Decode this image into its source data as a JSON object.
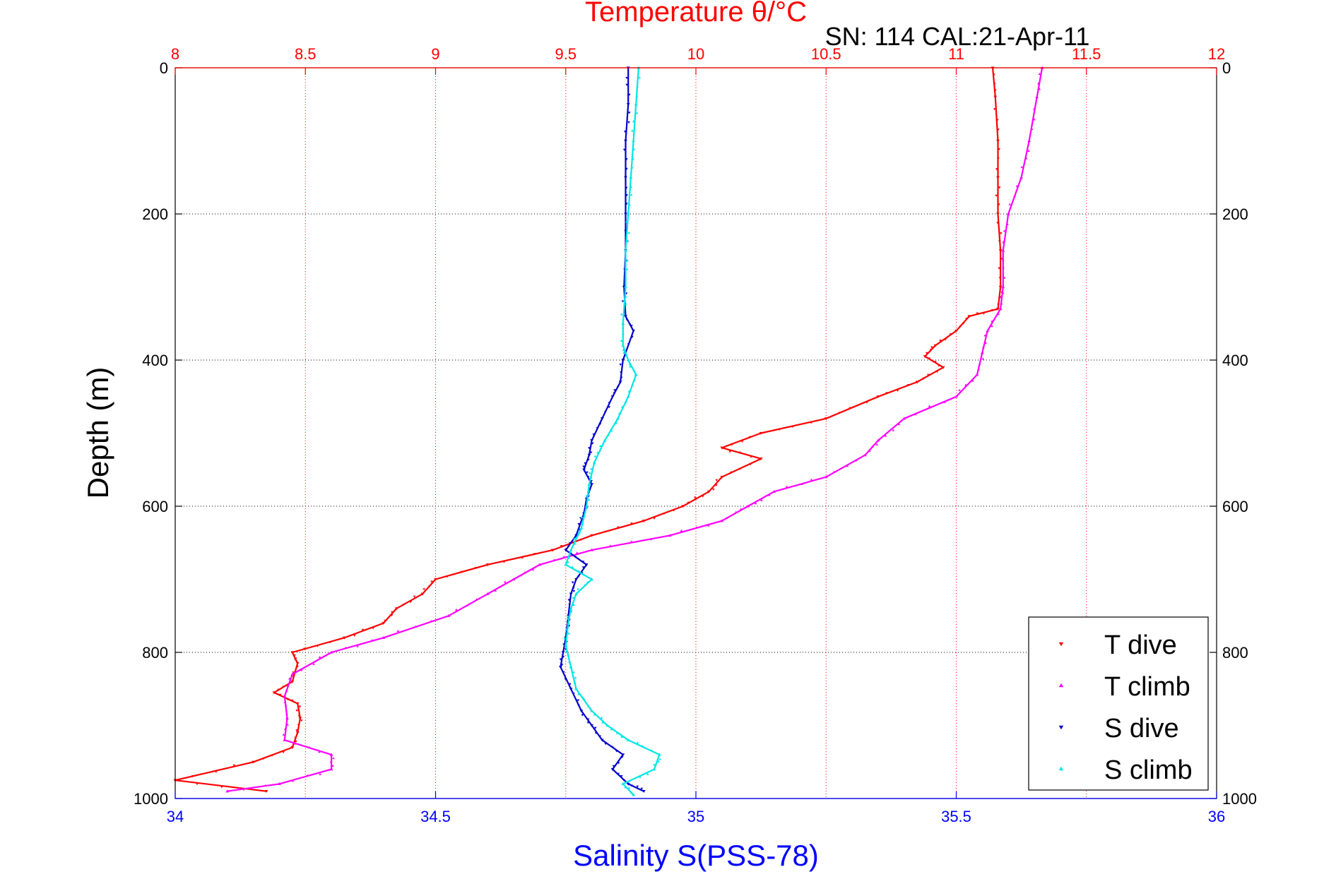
{
  "chart_data": {
    "type": "scatter",
    "title": "Temperature θ/°C",
    "subtitle": "SN: 114  CAL:21-Apr-11",
    "ylabel": "Depth (m)",
    "xlabel_bottom": "Salinity S(PSS-78)",
    "xlabel_top": "Temperature θ/°C",
    "ylim": [
      0,
      1000
    ],
    "y_reversed": true,
    "y_ticks": [
      0,
      200,
      400,
      600,
      800,
      1000
    ],
    "salinity_lim": [
      34,
      36
    ],
    "salinity_ticks": [
      "34",
      "34.5",
      "35",
      "35.5",
      "36"
    ],
    "temperature_lim": [
      8,
      12
    ],
    "temperature_ticks": [
      "8",
      "8.5",
      "9",
      "9.5",
      "10",
      "10.5",
      "11",
      "11.5",
      "12"
    ],
    "grid": true,
    "legend_position": "bottom-right",
    "colors": {
      "temperature_axis": "#ff0000",
      "salinity_axis": "#0000ff",
      "t_dive": "#ff0000",
      "t_climb": "#ff00ff",
      "s_dive": "#0000cc",
      "s_climb": "#00e5e5"
    },
    "series": [
      {
        "name": "T dive",
        "axis": "temperature",
        "color": "#ff0000",
        "marker": "down-triangle",
        "points": [
          [
            0,
            11.14
          ],
          [
            40,
            11.15
          ],
          [
            100,
            11.16
          ],
          [
            150,
            11.16
          ],
          [
            200,
            11.16
          ],
          [
            250,
            11.17
          ],
          [
            300,
            11.17
          ],
          [
            330,
            11.16
          ],
          [
            340,
            11.05
          ],
          [
            360,
            11.0
          ],
          [
            380,
            10.92
          ],
          [
            395,
            10.88
          ],
          [
            410,
            10.95
          ],
          [
            430,
            10.85
          ],
          [
            450,
            10.7
          ],
          [
            480,
            10.5
          ],
          [
            500,
            10.25
          ],
          [
            520,
            10.1
          ],
          [
            535,
            10.25
          ],
          [
            560,
            10.1
          ],
          [
            580,
            10.05
          ],
          [
            600,
            9.95
          ],
          [
            620,
            9.8
          ],
          [
            640,
            9.6
          ],
          [
            660,
            9.45
          ],
          [
            680,
            9.2
          ],
          [
            700,
            9.0
          ],
          [
            720,
            8.95
          ],
          [
            740,
            8.85
          ],
          [
            760,
            8.8
          ],
          [
            780,
            8.65
          ],
          [
            800,
            8.45
          ],
          [
            815,
            8.47
          ],
          [
            840,
            8.45
          ],
          [
            855,
            8.38
          ],
          [
            870,
            8.47
          ],
          [
            890,
            8.48
          ],
          [
            910,
            8.47
          ],
          [
            930,
            8.45
          ],
          [
            950,
            8.3
          ],
          [
            975,
            8.0
          ],
          [
            990,
            8.35
          ]
        ]
      },
      {
        "name": "T climb",
        "axis": "temperature",
        "color": "#ff00ff",
        "marker": "up-triangle",
        "points": [
          [
            0,
            11.33
          ],
          [
            40,
            11.31
          ],
          [
            100,
            11.28
          ],
          [
            150,
            11.25
          ],
          [
            200,
            11.2
          ],
          [
            250,
            11.18
          ],
          [
            300,
            11.18
          ],
          [
            330,
            11.17
          ],
          [
            360,
            11.12
          ],
          [
            390,
            11.1
          ],
          [
            420,
            11.08
          ],
          [
            450,
            11.0
          ],
          [
            480,
            10.8
          ],
          [
            510,
            10.7
          ],
          [
            530,
            10.65
          ],
          [
            560,
            10.5
          ],
          [
            580,
            10.3
          ],
          [
            600,
            10.2
          ],
          [
            620,
            10.1
          ],
          [
            640,
            9.9
          ],
          [
            660,
            9.6
          ],
          [
            680,
            9.4
          ],
          [
            700,
            9.3
          ],
          [
            720,
            9.2
          ],
          [
            750,
            9.05
          ],
          [
            780,
            8.8
          ],
          [
            800,
            8.6
          ],
          [
            830,
            8.45
          ],
          [
            860,
            8.42
          ],
          [
            890,
            8.43
          ],
          [
            920,
            8.42
          ],
          [
            940,
            8.6
          ],
          [
            960,
            8.6
          ],
          [
            980,
            8.4
          ],
          [
            990,
            8.2
          ]
        ]
      },
      {
        "name": "S dive",
        "axis": "salinity",
        "color": "#0000cc",
        "marker": "down-triangle",
        "points": [
          [
            0,
            34.87
          ],
          [
            50,
            34.87
          ],
          [
            100,
            34.865
          ],
          [
            150,
            34.865
          ],
          [
            200,
            34.865
          ],
          [
            250,
            34.865
          ],
          [
            300,
            34.862
          ],
          [
            340,
            34.865
          ],
          [
            360,
            34.88
          ],
          [
            400,
            34.86
          ],
          [
            430,
            34.855
          ],
          [
            450,
            34.84
          ],
          [
            480,
            34.82
          ],
          [
            510,
            34.8
          ],
          [
            530,
            34.795
          ],
          [
            550,
            34.785
          ],
          [
            570,
            34.8
          ],
          [
            590,
            34.79
          ],
          [
            610,
            34.785
          ],
          [
            640,
            34.77
          ],
          [
            660,
            34.75
          ],
          [
            680,
            34.79
          ],
          [
            700,
            34.77
          ],
          [
            720,
            34.76
          ],
          [
            750,
            34.755
          ],
          [
            780,
            34.75
          ],
          [
            800,
            34.745
          ],
          [
            820,
            34.74
          ],
          [
            850,
            34.76
          ],
          [
            880,
            34.78
          ],
          [
            900,
            34.8
          ],
          [
            920,
            34.82
          ],
          [
            940,
            34.86
          ],
          [
            960,
            34.84
          ],
          [
            980,
            34.87
          ],
          [
            990,
            34.9
          ]
        ]
      },
      {
        "name": "S climb",
        "axis": "salinity",
        "color": "#00e5e5",
        "marker": "up-triangle",
        "points": [
          [
            0,
            34.89
          ],
          [
            50,
            34.885
          ],
          [
            100,
            34.88
          ],
          [
            150,
            34.875
          ],
          [
            200,
            34.87
          ],
          [
            250,
            34.865
          ],
          [
            300,
            34.865
          ],
          [
            350,
            34.86
          ],
          [
            380,
            34.86
          ],
          [
            400,
            34.87
          ],
          [
            420,
            34.885
          ],
          [
            450,
            34.87
          ],
          [
            480,
            34.85
          ],
          [
            510,
            34.825
          ],
          [
            540,
            34.805
          ],
          [
            570,
            34.795
          ],
          [
            600,
            34.79
          ],
          [
            630,
            34.78
          ],
          [
            660,
            34.76
          ],
          [
            680,
            34.75
          ],
          [
            700,
            34.8
          ],
          [
            720,
            34.77
          ],
          [
            740,
            34.76
          ],
          [
            760,
            34.755
          ],
          [
            790,
            34.75
          ],
          [
            820,
            34.76
          ],
          [
            850,
            34.77
          ],
          [
            880,
            34.8
          ],
          [
            900,
            34.83
          ],
          [
            920,
            34.87
          ],
          [
            940,
            34.93
          ],
          [
            960,
            34.92
          ],
          [
            980,
            34.86
          ],
          [
            995,
            34.88
          ]
        ]
      }
    ]
  }
}
